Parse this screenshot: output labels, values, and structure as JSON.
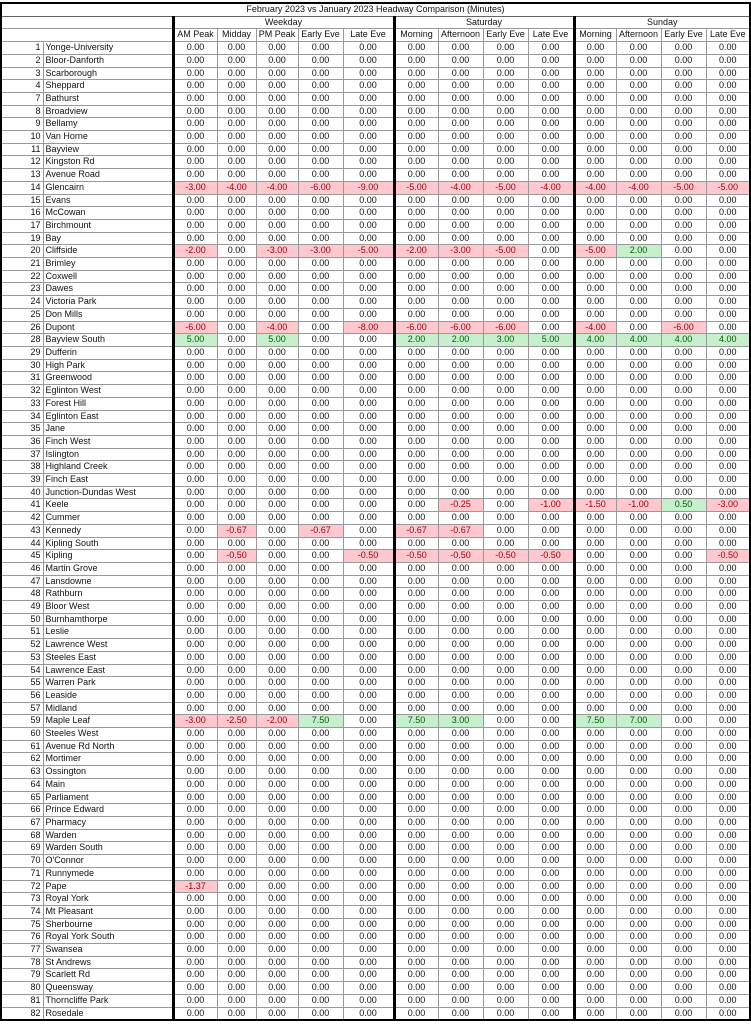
{
  "title": "February 2023 vs January 2023 Headway Comparison (Minutes)",
  "groups": [
    "Weekday",
    "Saturday",
    "Sunday"
  ],
  "columns": [
    "AM Peak",
    "Midday",
    "PM Peak",
    "Early Eve",
    "Late Eve",
    "Morning",
    "Afternoon",
    "Early Eve",
    "Late Eve",
    "Morning",
    "Afternoon",
    "Early Eve",
    "Late Eve"
  ],
  "colors": {
    "negative_fill": "#ffc7ce",
    "negative_text": "#9c0006",
    "positive_fill": "#c6efce",
    "positive_text": "#006100"
  },
  "rows": [
    [
      "1",
      "Yonge-University"
    ],
    [
      "2",
      "Bloor-Danforth"
    ],
    [
      "3",
      "Scarborough"
    ],
    [
      "4",
      "Sheppard"
    ],
    [
      "7",
      "Bathurst"
    ],
    [
      "8",
      "Broadview"
    ],
    [
      "9",
      "Bellamy"
    ],
    [
      "10",
      "Van Horne"
    ],
    [
      "11",
      "Bayview"
    ],
    [
      "12",
      "Kingston Rd"
    ],
    [
      "13",
      "Avenue Road"
    ],
    [
      "14",
      "Glencairn",
      "-3.00",
      "-4.00",
      "-4.00",
      "-6.00",
      "-9.00",
      "-5.00",
      "-4.00",
      "-5.00",
      "-4.00",
      "-4.00",
      "-4.00",
      "-5.00",
      "-5.00"
    ],
    [
      "15",
      "Evans"
    ],
    [
      "16",
      "McCowan"
    ],
    [
      "17",
      "Birchmount"
    ],
    [
      "19",
      "Bay"
    ],
    [
      "20",
      "Cliffside",
      "-2.00",
      "0.00",
      "-3.00",
      "-3.00",
      "-5.00",
      "-2.00",
      "-3.00",
      "-5.00",
      "0.00",
      "-5.00",
      "2.00",
      "0.00",
      "0.00"
    ],
    [
      "21",
      "Brimley"
    ],
    [
      "22",
      "Coxwell"
    ],
    [
      "23",
      "Dawes"
    ],
    [
      "24",
      "Victoria Park"
    ],
    [
      "25",
      "Don Mills"
    ],
    [
      "26",
      "Dupont",
      "-6.00",
      "0.00",
      "-4.00",
      "0.00",
      "-8.00",
      "-6.00",
      "-6.00",
      "-6.00",
      "0.00",
      "-4.00",
      "0.00",
      "-6.00",
      "0.00"
    ],
    [
      "28",
      "Bayview South",
      "5.00",
      "0.00",
      "5.00",
      "0.00",
      "0.00",
      "2.00",
      "2.00",
      "3.00",
      "5.00",
      "4.00",
      "4.00",
      "4.00",
      "4.00"
    ],
    [
      "29",
      "Dufferin"
    ],
    [
      "30",
      "High Park"
    ],
    [
      "31",
      "Greenwood"
    ],
    [
      "32",
      "Eglinton West"
    ],
    [
      "33",
      "Forest Hill"
    ],
    [
      "34",
      "Eglinton East"
    ],
    [
      "35",
      "Jane"
    ],
    [
      "36",
      "Finch West"
    ],
    [
      "37",
      "Islington"
    ],
    [
      "38",
      "Highland Creek"
    ],
    [
      "39",
      "Finch East"
    ],
    [
      "40",
      "Junction-Dundas West"
    ],
    [
      "41",
      "Keele",
      "0.00",
      "0.00",
      "0.00",
      "0.00",
      "0.00",
      "0.00",
      "-0.25",
      "0.00",
      "-1.00",
      "-1.50",
      "-1.00",
      "0.50",
      "-3.00"
    ],
    [
      "42",
      "Cummer"
    ],
    [
      "43",
      "Kennedy",
      "0.00",
      "-0.67",
      "0.00",
      "-0.67",
      "0.00",
      "-0.67",
      "-0.67",
      "0.00",
      "0.00",
      "0.00",
      "0.00",
      "0.00",
      "0.00"
    ],
    [
      "44",
      "Kipling South"
    ],
    [
      "45",
      "Kipling",
      "0.00",
      "-0.50",
      "0.00",
      "0.00",
      "-0.50",
      "-0.50",
      "-0.50",
      "-0.50",
      "-0.50",
      "0.00",
      "0.00",
      "0.00",
      "-0.50"
    ],
    [
      "46",
      "Martin Grove"
    ],
    [
      "47",
      "Lansdowne"
    ],
    [
      "48",
      "Rathburn"
    ],
    [
      "49",
      "Bloor West"
    ],
    [
      "50",
      "Burnhamthorpe"
    ],
    [
      "51",
      "Leslie"
    ],
    [
      "52",
      "Lawrence West"
    ],
    [
      "53",
      "Steeles East"
    ],
    [
      "54",
      "Lawrence East"
    ],
    [
      "55",
      "Warren Park"
    ],
    [
      "56",
      "Leaside"
    ],
    [
      "57",
      "Midland"
    ],
    [
      "59",
      "Maple Leaf",
      "-3.00",
      "-2.50",
      "-2.00",
      "7.50",
      "0.00",
      "7.50",
      "3.00",
      "0.00",
      "0.00",
      "7.50",
      "7.00",
      "0.00",
      "0.00"
    ],
    [
      "60",
      "Steeles West"
    ],
    [
      "61",
      "Avenue Rd North"
    ],
    [
      "62",
      "Mortimer"
    ],
    [
      "63",
      "Ossington"
    ],
    [
      "64",
      "Main"
    ],
    [
      "65",
      "Parliament"
    ],
    [
      "66",
      "Prince Edward"
    ],
    [
      "67",
      "Pharmacy"
    ],
    [
      "68",
      "Warden"
    ],
    [
      "69",
      "Warden South"
    ],
    [
      "70",
      "O'Connor"
    ],
    [
      "71",
      "Runnymede"
    ],
    [
      "72",
      "Pape",
      "-1.37",
      "0.00",
      "0.00",
      "0.00",
      "0.00",
      "0.00",
      "0.00",
      "0.00",
      "0.00",
      "0.00",
      "0.00",
      "0.00",
      "0.00"
    ],
    [
      "73",
      "Royal York"
    ],
    [
      "74",
      "Mt Pleasant"
    ],
    [
      "75",
      "Sherbourne"
    ],
    [
      "76",
      "Royal York South"
    ],
    [
      "77",
      "Swansea"
    ],
    [
      "78",
      "St Andrews"
    ],
    [
      "79",
      "Scarlett Rd"
    ],
    [
      "80",
      "Queensway"
    ],
    [
      "81",
      "Thorncliffe Park"
    ],
    [
      "82",
      "Rosedale"
    ]
  ]
}
